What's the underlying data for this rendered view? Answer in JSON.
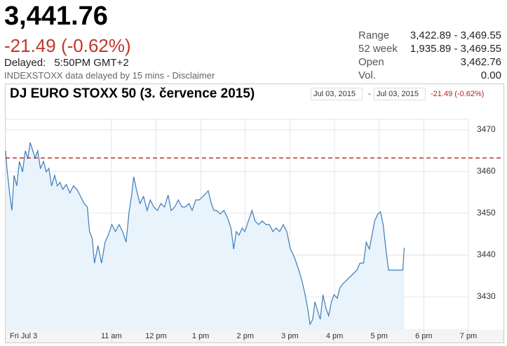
{
  "header": {
    "price": "3,441.76",
    "change": "-21.49 (-0.62%)",
    "delayed_label": "Delayed:",
    "delayed_time": "5:50PM GMT+2",
    "source_note": "INDEXSTOXX data delayed by 15 mins - Disclaimer",
    "stats": [
      {
        "label": "Range",
        "value": "3,422.89 - 3,469.55"
      },
      {
        "label": "52 week",
        "value": "1,935.89 - 3,469.55"
      },
      {
        "label": "Open",
        "value": "3,462.76"
      },
      {
        "label": "Vol.",
        "value": "0.00"
      }
    ]
  },
  "chart_data": {
    "type": "area",
    "title": "DJ EURO STOXX 50 (3. července 2015)",
    "range_start": "Jul 03, 2015",
    "range_separator": "-",
    "range_end": "Jul 03, 2015",
    "color": "#3d7cb8",
    "fill": "#e8f3fc",
    "reference_line": 3463.25,
    "reference_color": "#b22222",
    "grid": true,
    "xlim": [
      8.63,
      19.0
    ],
    "ylim": [
      3422.1,
      3472.5
    ],
    "xticks": [
      {
        "value": 8.63,
        "label": "Fri Jul 3"
      },
      {
        "value": 11,
        "label": "11 am"
      },
      {
        "value": 12,
        "label": "12 pm"
      },
      {
        "value": 13,
        "label": "1 pm"
      },
      {
        "value": 14,
        "label": "2 pm"
      },
      {
        "value": 15,
        "label": "3 pm"
      },
      {
        "value": 16,
        "label": "4 pm"
      },
      {
        "value": 17,
        "label": "5 pm"
      },
      {
        "value": 18,
        "label": "6 pm"
      },
      {
        "value": 19,
        "label": "7 pm"
      }
    ],
    "yticks": [
      3430,
      3440,
      3450,
      3460,
      3470
    ],
    "x": [
      8.63,
      8.66,
      8.72,
      8.77,
      8.82,
      8.88,
      8.94,
      9.01,
      9.07,
      9.13,
      9.18,
      9.24,
      9.29,
      9.35,
      9.41,
      9.48,
      9.54,
      9.6,
      9.66,
      9.73,
      9.79,
      9.85,
      9.91,
      9.99,
      10.07,
      10.15,
      10.23,
      10.31,
      10.39,
      10.46,
      10.51,
      10.57,
      10.62,
      10.7,
      10.78,
      10.86,
      10.93,
      11.01,
      11.09,
      11.17,
      11.25,
      11.33,
      11.4,
      11.45,
      11.5,
      11.56,
      11.64,
      11.72,
      11.8,
      11.87,
      11.95,
      12.03,
      12.11,
      12.19,
      12.27,
      12.34,
      12.42,
      12.5,
      12.58,
      12.66,
      12.74,
      12.81,
      12.89,
      12.97,
      13.05,
      13.13,
      13.17,
      13.24,
      13.3,
      13.36,
      13.44,
      13.52,
      13.6,
      13.68,
      13.74,
      13.8,
      13.86,
      13.93,
      13.99,
      14.07,
      14.15,
      14.22,
      14.3,
      14.38,
      14.46,
      14.54,
      14.62,
      14.69,
      14.77,
      14.85,
      14.93,
      15.01,
      15.09,
      15.13,
      15.2,
      15.27,
      15.34,
      15.4,
      15.45,
      15.51,
      15.56,
      15.63,
      15.68,
      15.74,
      15.81,
      15.87,
      15.93,
      15.99,
      16.06,
      16.12,
      16.18,
      16.26,
      16.34,
      16.42,
      16.5,
      16.57,
      16.65,
      16.71,
      16.78,
      16.84,
      16.9,
      16.97,
      17.03,
      17.09,
      17.15,
      17.21,
      17.28,
      17.43,
      17.53,
      17.56
    ],
    "values": [
      3464.96,
      3460.76,
      3454.87,
      3450.67,
      3459.08,
      3456.55,
      3462.44,
      3459.92,
      3464.96,
      3463.28,
      3466.97,
      3464.96,
      3463.28,
      3464.96,
      3460.76,
      3462.44,
      3459.92,
      3460.76,
      3456.55,
      3459.08,
      3456.55,
      3457.39,
      3455.71,
      3456.89,
      3454.87,
      3456.55,
      3455.71,
      3454.03,
      3452.35,
      3451.51,
      3445.63,
      3443.95,
      3438.07,
      3442.27,
      3438.07,
      3443.11,
      3444.79,
      3447.31,
      3445.63,
      3447.31,
      3445.63,
      3443.11,
      3450.67,
      3454.03,
      3458.74,
      3455.71,
      3452.35,
      3454.03,
      3450.67,
      3453.19,
      3451.51,
      3450.67,
      3452.35,
      3451.51,
      3454.37,
      3450.67,
      3451.51,
      3453.19,
      3451.51,
      3451.51,
      3452.35,
      3450.67,
      3453.19,
      3453.19,
      3454.03,
      3454.87,
      3455.38,
      3452.35,
      3450.67,
      3450.67,
      3449.83,
      3450.67,
      3448.99,
      3446.47,
      3441.43,
      3445.63,
      3444.79,
      3446.47,
      3445.63,
      3448.15,
      3450.67,
      3448.15,
      3447.31,
      3448.15,
      3447.31,
      3447.31,
      3445.63,
      3446.47,
      3445.63,
      3447.31,
      3445.63,
      3441.43,
      3439.75,
      3438.57,
      3436.39,
      3433.87,
      3430.5,
      3427.14,
      3423.45,
      3424.62,
      3428.82,
      3426.3,
      3424.62,
      3430.5,
      3427.14,
      3425.46,
      3428.82,
      3430.5,
      3429.66,
      3432.18,
      3433.03,
      3433.87,
      3434.71,
      3435.55,
      3436.39,
      3438.07,
      3438.07,
      3443.11,
      3441.43,
      3444.79,
      3448.15,
      3449.83,
      3450.34,
      3447.31,
      3441.43,
      3436.39,
      3436.39,
      3436.39,
      3436.39,
      3441.76
    ]
  }
}
